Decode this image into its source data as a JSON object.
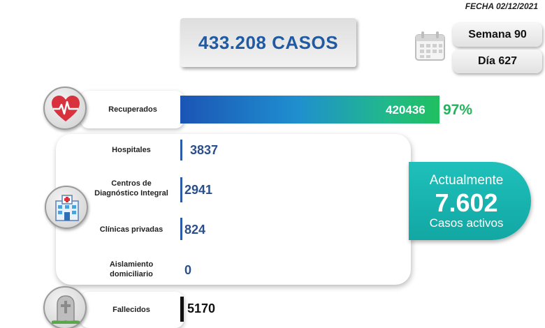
{
  "header": {
    "date": "FECHA 02/12/2021",
    "total_cases": "433.208 CASOS",
    "week": "Semana 90",
    "day": "Día 627"
  },
  "active": {
    "line1": "Actualmente",
    "count": "7.602",
    "line3": "Casos activos"
  },
  "icons": {
    "calendar": "calendar-icon",
    "recovered": "heart-pulse-icon",
    "hospital": "hospital-icon",
    "deaths": "grave-icon"
  },
  "colors": {
    "recovered_bar_start": "#1b55b5",
    "recovered_bar_end": "#20c060",
    "recovered_pct": "#22b45c",
    "active_bg": "#16b3ae",
    "value_blue": "#2b4f8d",
    "total_text": "#1f5aa3"
  },
  "chart_data": {
    "type": "bar",
    "orientation": "horizontal",
    "categories": [
      "Recuperados",
      "Hospitales",
      "Centros de Diagnóstico Integral",
      "Clínicas privadas",
      "Aislamiento domiciliario",
      "Fallecidos"
    ],
    "values": [
      420436,
      3837,
      2941,
      824,
      0,
      5170
    ],
    "labels": {
      "recovered": "Recuperados",
      "recovered_value": "420436",
      "recovered_pct": "97%",
      "hospitals": "Hospitales",
      "hospitals_value": "3837",
      "cdi_line1": "Centros de",
      "cdi_line2": "Diagnóstico Integral",
      "cdi_value": "2941",
      "clinics": "Clínicas privadas",
      "clinics_value": "824",
      "home_line1": "Aislamiento",
      "home_line2": "domiciliario",
      "home_value": "0",
      "deaths": "Fallecidos",
      "deaths_value": "5170"
    }
  }
}
